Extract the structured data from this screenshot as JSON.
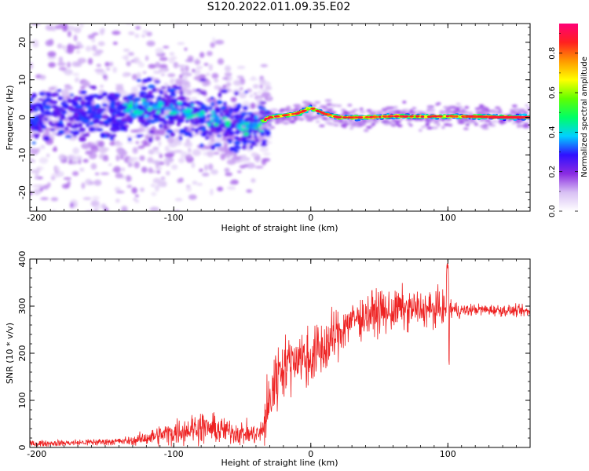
{
  "title": "S120.2022.011.09.35.E02",
  "chart_data": [
    {
      "type": "heatmap",
      "xlabel": "Height of straight line (km)",
      "ylabel": "Frequency (Hz)",
      "xlim": [
        -205,
        160
      ],
      "ylim": [
        -25,
        25
      ],
      "xticks": [
        -200,
        -100,
        0,
        100
      ],
      "yticks": [
        -20,
        -10,
        0,
        10,
        20
      ],
      "colorbar": {
        "label": "Normalized spectral amplitude",
        "range": [
          0.0,
          0.95
        ],
        "ticks": [
          "0.0",
          "0.2",
          "0.4",
          "0.6",
          "0.8"
        ],
        "colormap": [
          "#ffffff",
          "#d8c0f4",
          "#8a2be2",
          "#3010ff",
          "#00d0ff",
          "#00ff66",
          "#60ff00",
          "#ffff00",
          "#ff9900",
          "#ff2020",
          "#ff0077"
        ]
      },
      "ridge_x": [
        -200,
        -180,
        -160,
        -140,
        -120,
        -100,
        -80,
        -60,
        -45,
        -35,
        -30,
        -20,
        -10,
        0,
        10,
        20,
        40,
        60,
        80,
        100,
        120,
        140,
        160
      ],
      "ridge_y": [
        0,
        1,
        0.5,
        1.5,
        2.5,
        2,
        1,
        -2,
        -3,
        -1,
        0,
        0.5,
        1,
        2.5,
        1,
        0,
        0,
        0.3,
        0.2,
        0.3,
        0.2,
        0.1,
        0
      ]
    },
    {
      "type": "line",
      "xlabel": "Height of straight line (km)",
      "ylabel": "SNR (10 * v/v)",
      "xlim": [
        -205,
        160
      ],
      "ylim": [
        0,
        400
      ],
      "xticks": [
        -200,
        -100,
        0,
        100
      ],
      "yticks": [
        0,
        100,
        200,
        300,
        400
      ],
      "color": "#ee2222",
      "series": [
        {
          "x": [
            -205,
            -190,
            -170,
            -150,
            -130,
            -120,
            -110,
            -100,
            -90,
            -80,
            -70,
            -60,
            -50,
            -40,
            -36,
            -32,
            -28,
            -24,
            -20,
            -16,
            -12,
            -8,
            -4,
            0,
            4,
            8,
            12,
            16,
            20,
            25,
            30,
            35,
            40,
            45,
            50,
            55,
            60,
            65,
            70,
            75,
            80,
            85,
            90,
            95,
            98,
            100,
            102,
            105,
            110,
            120,
            130,
            140,
            150,
            160
          ],
          "y": [
            8,
            9,
            10,
            12,
            14,
            20,
            26,
            32,
            38,
            44,
            38,
            35,
            30,
            28,
            30,
            70,
            120,
            160,
            175,
            180,
            190,
            195,
            185,
            190,
            200,
            210,
            215,
            230,
            240,
            260,
            270,
            275,
            280,
            285,
            290,
            285,
            290,
            295,
            290,
            295,
            292,
            295,
            290,
            298,
            290,
            340,
            295,
            292,
            290,
            293,
            292,
            291,
            290,
            288
          ],
          "noise": [
            4,
            4,
            5,
            5,
            6,
            10,
            14,
            18,
            20,
            22,
            20,
            18,
            16,
            15,
            18,
            45,
            55,
            50,
            40,
            35,
            40,
            45,
            40,
            40,
            40,
            45,
            40,
            40,
            35,
            30,
            28,
            28,
            30,
            30,
            30,
            30,
            28,
            28,
            28,
            26,
            26,
            25,
            24,
            24,
            30,
            50,
            20,
            12,
            10,
            8,
            8,
            8,
            8,
            8
          ]
        }
      ]
    }
  ]
}
